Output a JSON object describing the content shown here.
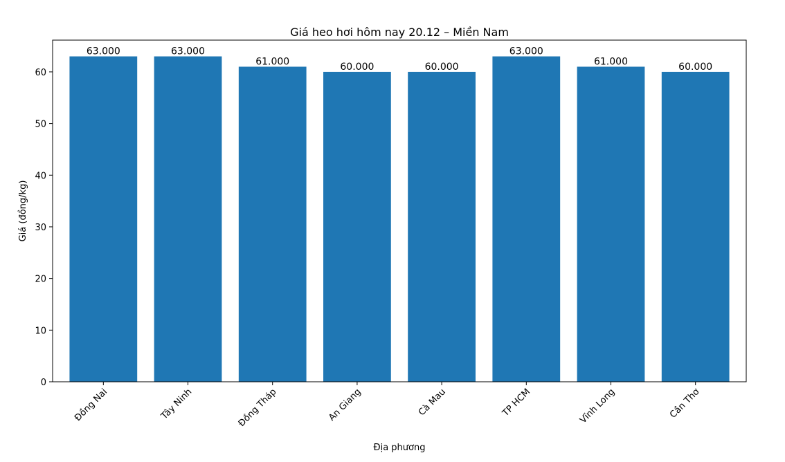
{
  "chart_data": {
    "type": "bar",
    "title": "Giá heo hơi hôm nay 20.12 – Miền Nam",
    "xlabel": "Địa phương",
    "ylabel": "Giá (đồng/kg)",
    "categories": [
      "Đồng Nai",
      "Tây Ninh",
      "Đồng Tháp",
      "An Giang",
      "Cà Mau",
      "TP HCM",
      "Vĩnh Long",
      "Cần Thơ"
    ],
    "values": [
      63,
      63,
      61,
      60,
      60,
      63,
      61,
      60
    ],
    "data_labels": [
      "63.000",
      "63.000",
      "61.000",
      "60.000",
      "60.000",
      "63.000",
      "61.000",
      "60.000"
    ],
    "yticks": [
      0,
      10,
      20,
      30,
      40,
      50,
      60
    ],
    "ylim": [
      0,
      66.15
    ],
    "grid": false,
    "bar_color": "#1f77b4"
  }
}
